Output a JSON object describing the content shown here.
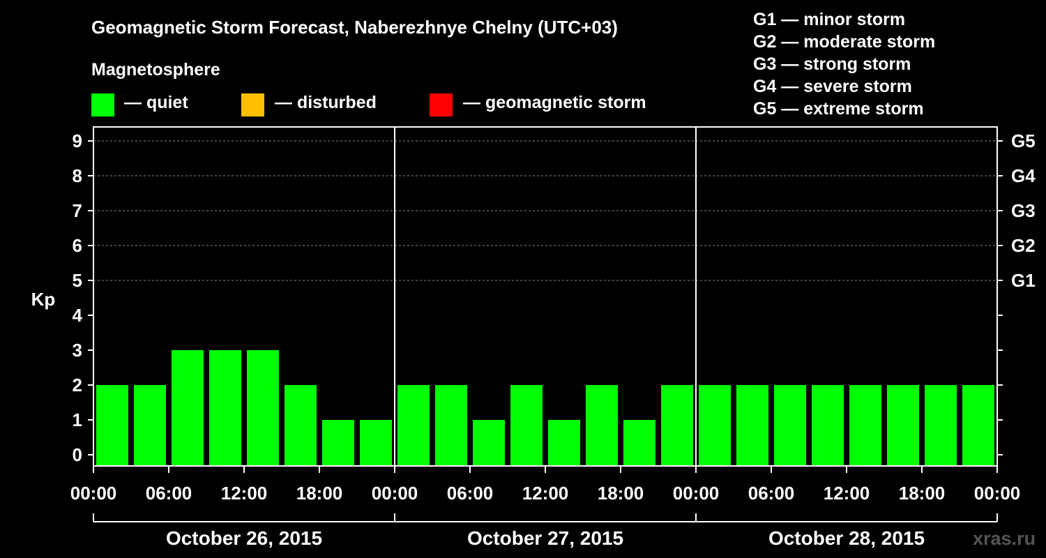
{
  "title": "Geomagnetic Storm Forecast, Naberezhnye Chelny (UTC+03)",
  "legend": {
    "heading": "Magnetosphere",
    "items": [
      {
        "label": "— quiet",
        "color": "#00ff00"
      },
      {
        "label": "— disturbed",
        "color": "#ffbf00"
      },
      {
        "label": "— geomagnetic storm",
        "color": "#ff0000"
      }
    ]
  },
  "storm_scale": [
    "G1 — minor storm",
    "G2 — moderate storm",
    "G3 — strong storm",
    "G4 — severe storm",
    "G5 — extreme storm"
  ],
  "watermark": "xras.ru",
  "chart_data": {
    "type": "bar",
    "ylabel": "Kp",
    "ylim": [
      0,
      9
    ],
    "yticks": [
      "0",
      "1",
      "2",
      "3",
      "4",
      "5",
      "6",
      "7",
      "8",
      "9"
    ],
    "right_ticks": [
      {
        "value": 5,
        "label": "G1"
      },
      {
        "value": 6,
        "label": "G2"
      },
      {
        "value": 7,
        "label": "G3"
      },
      {
        "value": 8,
        "label": "G4"
      },
      {
        "value": 9,
        "label": "G5"
      }
    ],
    "xticks": [
      "00:00",
      "06:00",
      "12:00",
      "18:00",
      "00:00",
      "06:00",
      "12:00",
      "18:00",
      "00:00",
      "06:00",
      "12:00",
      "18:00",
      "00:00"
    ],
    "days": [
      "October 26, 2015",
      "October 27, 2015",
      "October 28, 2015"
    ],
    "interval_hours": 3,
    "values": [
      2,
      2,
      3,
      3,
      3,
      2,
      1,
      1,
      2,
      2,
      1,
      2,
      1,
      2,
      1,
      2,
      2,
      2,
      2,
      2,
      2,
      2,
      2,
      2
    ],
    "bar_color": "#00ff00",
    "gridlines": "dashed at G levels"
  }
}
